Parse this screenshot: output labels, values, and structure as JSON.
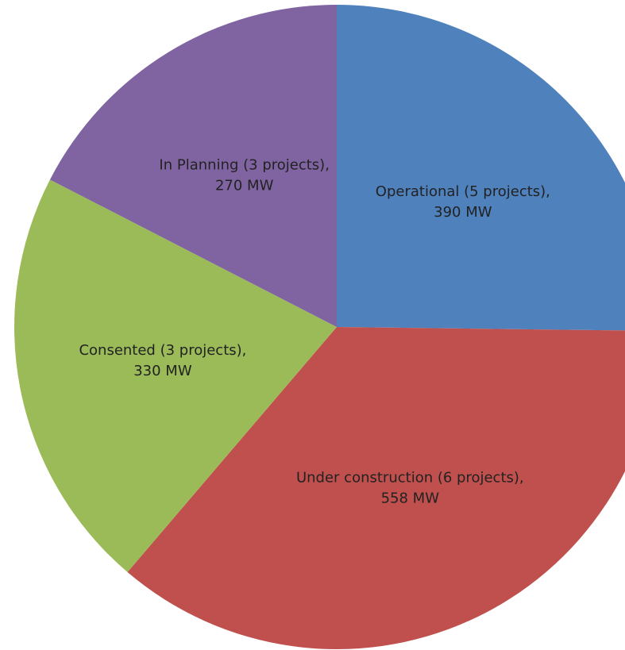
{
  "chart_data": {
    "type": "pie",
    "categories": [
      "Operational (5 projects),",
      "Under construction (6 projects),",
      "Consented (3 projects),",
      "In Planning (3 projects),"
    ],
    "values": [
      390,
      558,
      330,
      270
    ],
    "value_labels": [
      "390 MW",
      "558 MW",
      "330 MW",
      "270 MW"
    ],
    "colors": [
      "#4f81bd",
      "#c0504d",
      "#9bbb59",
      "#8064a2"
    ]
  }
}
